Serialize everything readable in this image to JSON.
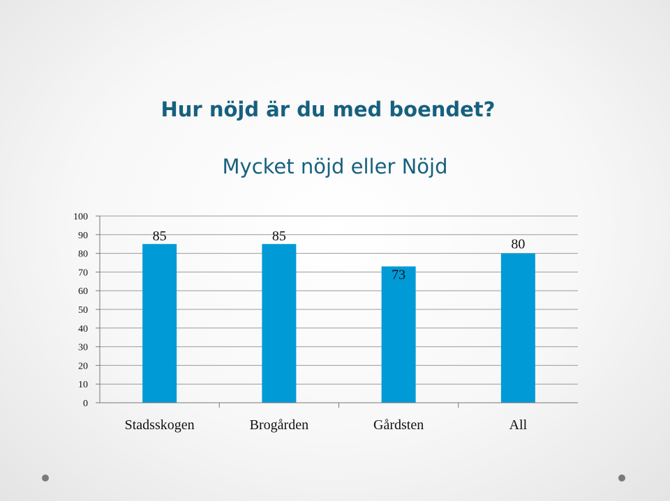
{
  "title": "Hur nöjd är du med boendet?",
  "subtitle": "Mycket nöjd eller Nöjd",
  "colors": {
    "title": "#17607f",
    "bar": "#009bd6",
    "grid": "#9a9a9a"
  },
  "chart_data": {
    "type": "bar",
    "categories": [
      "Stadsskogen",
      "Brogården",
      "Gårdsten",
      "All"
    ],
    "values": [
      85,
      85,
      73,
      80
    ],
    "ylim": [
      0,
      100
    ],
    "yticks": [
      0,
      10,
      20,
      30,
      40,
      50,
      60,
      70,
      80,
      90,
      100
    ],
    "grid": true,
    "data_labels": true,
    "xlabel": "",
    "ylabel": ""
  }
}
